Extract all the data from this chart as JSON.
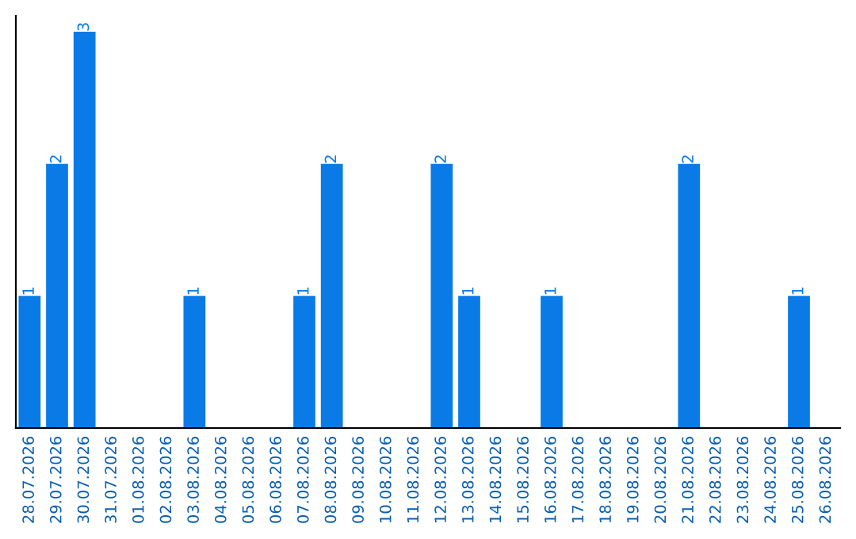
{
  "chart_data": {
    "type": "bar",
    "categories": [
      "28.07.2026",
      "29.07.2026",
      "30.07.2026",
      "31.07.2026",
      "01.08.2026",
      "02.08.2026",
      "03.08.2026",
      "04.08.2026",
      "05.08.2026",
      "06.08.2026",
      "07.08.2026",
      "08.08.2026",
      "09.08.2026",
      "10.08.2026",
      "11.08.2026",
      "12.08.2026",
      "13.08.2026",
      "14.08.2026",
      "15.08.2026",
      "16.08.2026",
      "17.08.2026",
      "18.08.2026",
      "19.08.2026",
      "20.08.2026",
      "21.08.2026",
      "22.08.2026",
      "23.08.2026",
      "24.08.2026",
      "25.08.2026",
      "26.08.2026"
    ],
    "values": [
      1,
      2,
      3,
      0,
      0,
      0,
      1,
      0,
      0,
      0,
      1,
      2,
      0,
      0,
      0,
      2,
      1,
      0,
      0,
      1,
      0,
      0,
      0,
      0,
      2,
      0,
      0,
      0,
      1,
      0
    ],
    "value_labels": [
      "1",
      "2",
      "3",
      null,
      null,
      null,
      "1",
      null,
      null,
      null,
      "1",
      "2",
      null,
      null,
      null,
      "2",
      "1",
      null,
      null,
      "1",
      null,
      null,
      null,
      null,
      "2",
      null,
      null,
      null,
      "1",
      null
    ],
    "color": "#0a7be6",
    "tick_labels": "x",
    "grid": false,
    "legend": false
  }
}
